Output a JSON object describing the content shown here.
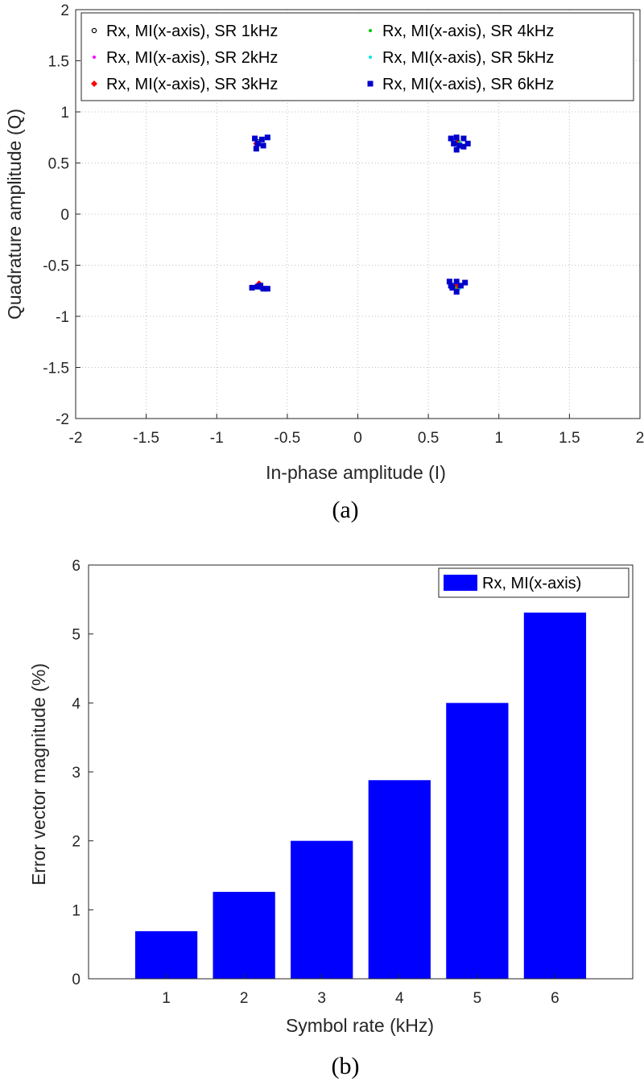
{
  "chart_data": [
    {
      "type": "scatter",
      "caption": "(a)",
      "xlabel": "In-phase amplitude (I)",
      "ylabel": "Quadrature amplitude (Q)",
      "xlim": [
        -2,
        2
      ],
      "ylim": [
        -2,
        2
      ],
      "xticks": [
        "-2",
        "-1.5",
        "-1",
        "-0.5",
        "0",
        "0.5",
        "1",
        "1.5",
        "2"
      ],
      "yticks": [
        "2",
        "1.5",
        "1",
        "0.5",
        "0",
        "-0.5",
        "-1",
        "-1.5",
        "-2"
      ],
      "grid": true,
      "legend_position": "top",
      "series": [
        {
          "name": "Rx, MI(x-axis), SR 1kHz",
          "color": "#000000",
          "marker": "circle",
          "points": [
            [
              0.707,
              0.707
            ],
            [
              -0.707,
              0.707
            ],
            [
              -0.707,
              -0.707
            ],
            [
              0.707,
              -0.707
            ],
            [
              0.71,
              0.7
            ],
            [
              -0.7,
              -0.71
            ]
          ]
        },
        {
          "name": "Rx, MI(x-axis), SR 2kHz",
          "color": "#ff00ff",
          "marker": "dot",
          "points": [
            [
              0.7,
              0.71
            ],
            [
              -0.71,
              0.7
            ],
            [
              -0.7,
              -0.71
            ],
            [
              0.71,
              -0.7
            ],
            [
              0.72,
              0.69
            ]
          ]
        },
        {
          "name": "Rx, MI(x-axis), SR 3kHz",
          "color": "#ff0000",
          "marker": "diamond",
          "points": [
            [
              0.69,
              0.71
            ],
            [
              -0.72,
              0.69
            ],
            [
              -0.7,
              -0.68
            ],
            [
              0.71,
              -0.71
            ],
            [
              0.7,
              -0.69
            ]
          ]
        },
        {
          "name": "Rx, MI(x-axis), SR 4kHz",
          "color": "#00cc00",
          "marker": "dot",
          "points": [
            [
              0.72,
              0.7
            ],
            [
              -0.69,
              0.72
            ],
            [
              -0.68,
              -0.72
            ],
            [
              0.69,
              -0.72
            ],
            [
              0.73,
              -0.7
            ],
            [
              -0.71,
              -0.7
            ]
          ]
        },
        {
          "name": "Rx, MI(x-axis), SR 5kHz",
          "color": "#00e5e5",
          "marker": "dot",
          "points": [
            [
              0.73,
              0.69
            ],
            [
              -0.7,
              0.69
            ],
            [
              -0.72,
              -0.71
            ],
            [
              0.72,
              -0.73
            ],
            [
              0.68,
              0.72
            ],
            [
              -0.69,
              -0.73
            ]
          ]
        },
        {
          "name": "Rx, MI(x-axis), SR 6kHz",
          "color": "#0000cc",
          "marker": "square",
          "points": [
            [
              0.66,
              0.74
            ],
            [
              0.7,
              0.75
            ],
            [
              0.75,
              0.74
            ],
            [
              0.68,
              0.69
            ],
            [
              0.72,
              0.67
            ],
            [
              0.78,
              0.69
            ],
            [
              0.7,
              0.63
            ],
            [
              0.75,
              0.66
            ],
            [
              -0.73,
              0.74
            ],
            [
              -0.68,
              0.73
            ],
            [
              -0.71,
              0.69
            ],
            [
              -0.67,
              0.67
            ],
            [
              -0.72,
              0.64
            ],
            [
              -0.64,
              0.75
            ],
            [
              -0.75,
              -0.72
            ],
            [
              -0.71,
              -0.71
            ],
            [
              -0.67,
              -0.73
            ],
            [
              -0.64,
              -0.73
            ],
            [
              -0.69,
              -0.7
            ],
            [
              0.65,
              -0.66
            ],
            [
              0.7,
              -0.66
            ],
            [
              0.76,
              -0.67
            ],
            [
              0.67,
              -0.72
            ],
            [
              0.73,
              -0.7
            ],
            [
              0.7,
              -0.76
            ],
            [
              0.66,
              -0.7
            ]
          ]
        }
      ]
    },
    {
      "type": "bar",
      "caption": "(b)",
      "xlabel": "Symbol rate (kHz)",
      "ylabel": "Error vector magnitude (%)",
      "categories": [
        "1",
        "2",
        "3",
        "4",
        "5",
        "6"
      ],
      "xlim": [
        0,
        7
      ],
      "ylim": [
        0,
        6
      ],
      "yticks": [
        "0",
        "1",
        "2",
        "3",
        "4",
        "5",
        "6"
      ],
      "grid": false,
      "legend_position": "top-right",
      "series": [
        {
          "name": "Rx, MI(x-axis)",
          "color": "#0000ff",
          "values": [
            0.69,
            1.26,
            2.0,
            2.88,
            4.0,
            5.31
          ]
        }
      ]
    }
  ]
}
